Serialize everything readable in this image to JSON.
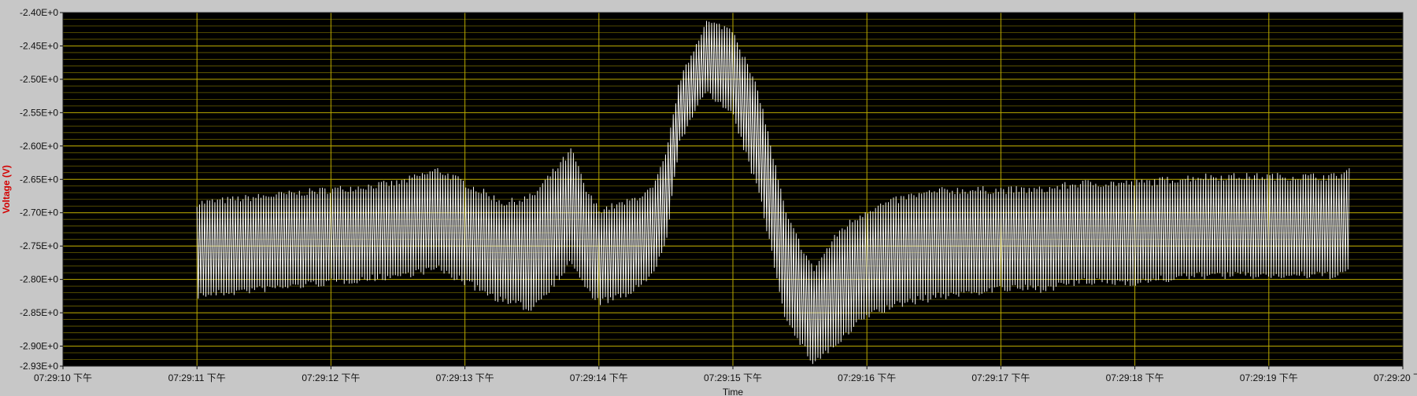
{
  "chart_data": {
    "type": "line",
    "title": "",
    "xlabel": "Time",
    "ylabel": "Voltage (V)",
    "ylim": [
      -2.93,
      -2.4
    ],
    "grid": true,
    "colors": {
      "plot_background": "#000000",
      "grid_major": "#b9a800",
      "grid_minor": "#6b6200",
      "signal": "#ffffff",
      "frame": "#c7c7c7"
    },
    "y_ticks": [
      {
        "value": -2.4,
        "label": "-2.40E+0"
      },
      {
        "value": -2.45,
        "label": "-2.45E+0"
      },
      {
        "value": -2.5,
        "label": "-2.50E+0"
      },
      {
        "value": -2.55,
        "label": "-2.55E+0"
      },
      {
        "value": -2.6,
        "label": "-2.60E+0"
      },
      {
        "value": -2.65,
        "label": "-2.65E+0"
      },
      {
        "value": -2.7,
        "label": "-2.70E+0"
      },
      {
        "value": -2.75,
        "label": "-2.75E+0"
      },
      {
        "value": -2.8,
        "label": "-2.80E+0"
      },
      {
        "value": -2.85,
        "label": "-2.85E+0"
      },
      {
        "value": -2.9,
        "label": "-2.90E+0"
      },
      {
        "value": -2.93,
        "label": "-2.93E+0"
      }
    ],
    "x_ticks": [
      {
        "value": 10,
        "label": "07:29:10 下午"
      },
      {
        "value": 11,
        "label": "07:29:11 下午"
      },
      {
        "value": 12,
        "label": "07:29:12 下午"
      },
      {
        "value": 13,
        "label": "07:29:13 下午"
      },
      {
        "value": 14,
        "label": "07:29:14 下午"
      },
      {
        "value": 15,
        "label": "07:29:15 下午"
      },
      {
        "value": 16,
        "label": "07:29:16 下午"
      },
      {
        "value": 17,
        "label": "07:29:17 下午"
      },
      {
        "value": 18,
        "label": "07:29:18 下午"
      },
      {
        "value": 19,
        "label": "07:29:19 下午"
      },
      {
        "value": 20,
        "label": "07:29:20 下午"
      }
    ],
    "xlim": [
      10,
      20
    ],
    "series": [
      {
        "envelope": {
          "x": [
            11.0,
            11.5,
            12.0,
            12.5,
            12.8,
            13.0,
            13.3,
            13.5,
            13.8,
            13.9,
            14.0,
            14.2,
            14.4,
            14.5,
            14.6,
            14.8,
            15.0,
            15.2,
            15.4,
            15.6,
            15.8,
            16.0,
            16.3,
            16.6,
            17.0,
            17.3,
            17.6,
            18.0,
            18.5,
            19.0,
            19.5,
            19.6
          ],
          "upper": [
            -2.68,
            -2.67,
            -2.66,
            -2.65,
            -2.63,
            -2.65,
            -2.68,
            -2.67,
            -2.6,
            -2.66,
            -2.69,
            -2.68,
            -2.66,
            -2.61,
            -2.5,
            -2.41,
            -2.42,
            -2.52,
            -2.7,
            -2.78,
            -2.72,
            -2.69,
            -2.67,
            -2.66,
            -2.66,
            -2.66,
            -2.65,
            -2.65,
            -2.64,
            -2.64,
            -2.64,
            -2.63
          ],
          "lower": [
            -2.83,
            -2.82,
            -2.81,
            -2.8,
            -2.79,
            -2.81,
            -2.84,
            -2.85,
            -2.78,
            -2.82,
            -2.84,
            -2.83,
            -2.8,
            -2.75,
            -2.6,
            -2.52,
            -2.56,
            -2.68,
            -2.87,
            -2.93,
            -2.9,
            -2.86,
            -2.84,
            -2.83,
            -2.82,
            -2.82,
            -2.81,
            -2.81,
            -2.8,
            -2.8,
            -2.8,
            -2.79
          ]
        }
      }
    ]
  }
}
